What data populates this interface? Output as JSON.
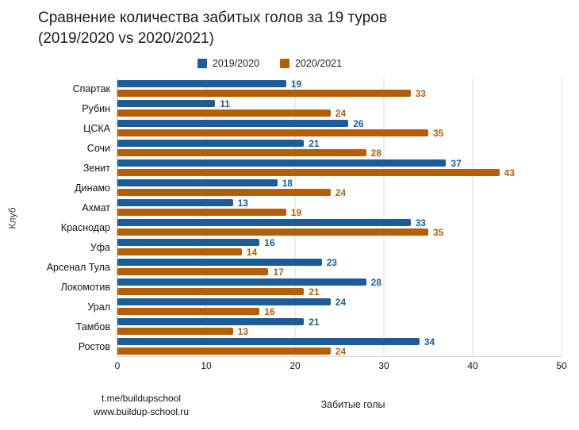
{
  "title": {
    "line1": "Сравнение количества забитых голов за 19 туров",
    "line2": "(2019/2020 vs 2020/2021)"
  },
  "footer": {
    "link1": "t.me/buildupschool",
    "link2": "www.buildup-school.ru"
  },
  "chart_data": {
    "type": "bar",
    "orientation": "horizontal",
    "title": "Сравнение количества забитых голов за 19 туров (2019/2020 vs 2020/2021)",
    "xlabel": "Забитые голы",
    "ylabel": "Клуб",
    "xlim": [
      0,
      50
    ],
    "xticks": [
      0,
      10,
      20,
      30,
      40,
      50
    ],
    "grid": true,
    "legend_position": "top",
    "categories": [
      "Спартак",
      "Рубин",
      "ЦСКА",
      "Сочи",
      "Зенит",
      "Динамо",
      "Ахмат",
      "Краснодар",
      "Уфа",
      "Арсенал Тула",
      "Локомотив",
      "Урал",
      "Тамбов",
      "Ростов"
    ],
    "series": [
      {
        "name": "2019/2020",
        "color": "#1c5d99",
        "values": [
          19,
          11,
          26,
          21,
          37,
          18,
          13,
          33,
          16,
          23,
          28,
          24,
          21,
          34
        ]
      },
      {
        "name": "2020/2021",
        "color": "#b45f06",
        "values": [
          33,
          24,
          35,
          28,
          43,
          24,
          19,
          35,
          14,
          17,
          21,
          16,
          13,
          24
        ]
      }
    ]
  }
}
